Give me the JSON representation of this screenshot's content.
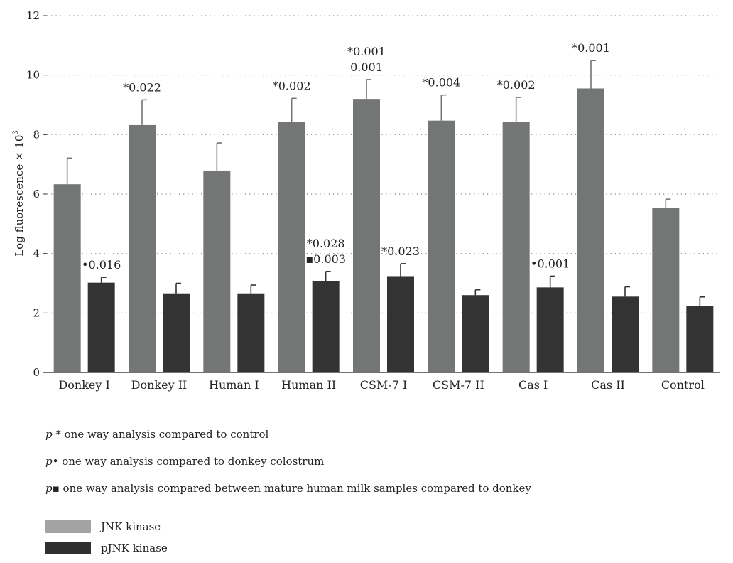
{
  "chart_data": {
    "type": "bar",
    "ylabel": "Log fluorescence × 10",
    "ylabel_sup": "3",
    "ylim": [
      0,
      12
    ],
    "yticks": [
      0,
      2,
      4,
      6,
      8,
      10,
      12
    ],
    "grid": "horizontal dotted",
    "categories": [
      "Donkey I",
      "Donkey II",
      "Human I",
      "Human II",
      "CSM-7 I",
      "CSM-7 II",
      "Cas I",
      "Cas II",
      "Control"
    ],
    "series": [
      {
        "name": "JNK kinase",
        "color": "#747575",
        "values": [
          6.33,
          8.32,
          6.79,
          8.43,
          9.2,
          8.47,
          8.43,
          9.55,
          5.53
        ],
        "errors": [
          0.88,
          0.85,
          0.93,
          0.79,
          0.65,
          0.86,
          0.82,
          0.94,
          0.3
        ]
      },
      {
        "name": "pJNK kinase",
        "color": "#333333",
        "values": [
          3.02,
          2.66,
          2.66,
          3.07,
          3.24,
          2.6,
          2.86,
          2.55,
          2.23
        ],
        "errors": [
          0.18,
          0.34,
          0.28,
          0.33,
          0.42,
          0.18,
          0.38,
          0.33,
          0.31
        ]
      }
    ],
    "annotations": [
      {
        "category": "Donkey I",
        "series": 1,
        "lines": [
          "•0.016"
        ]
      },
      {
        "category": "Donkey II",
        "series": 0,
        "lines": [
          "*0.022"
        ]
      },
      {
        "category": "Human II",
        "series": 0,
        "lines": [
          "*0.002"
        ]
      },
      {
        "category": "Human II",
        "series": 1,
        "lines": [
          "*0.028",
          "▪0.003"
        ]
      },
      {
        "category": "CSM-7 I",
        "series": 0,
        "lines": [
          "*0.001",
          "0.001"
        ]
      },
      {
        "category": "CSM-7 I",
        "series": 1,
        "lines": [
          "*0.023"
        ]
      },
      {
        "category": "CSM-7 II",
        "series": 0,
        "lines": [
          "*0.004"
        ]
      },
      {
        "category": "Cas I",
        "series": 0,
        "lines": [
          "*0.002"
        ]
      },
      {
        "category": "Cas I",
        "series": 1,
        "lines": [
          "•0.001"
        ]
      },
      {
        "category": "Cas II",
        "series": 0,
        "lines": [
          "*0.001"
        ]
      }
    ]
  },
  "notes": [
    {
      "p": "p",
      "text": " * one way analysis compared to control"
    },
    {
      "p": "p",
      "text": "• one way analysis compared to donkey colostrum"
    },
    {
      "p": "p",
      "text": "▪ one way analysis compared between mature human milk samples compared to donkey"
    }
  ],
  "legend": [
    {
      "label": "JNK kinase",
      "color": "#a3a3a3"
    },
    {
      "label": "pJNK kinase",
      "color": "#2f2f2f"
    }
  ]
}
